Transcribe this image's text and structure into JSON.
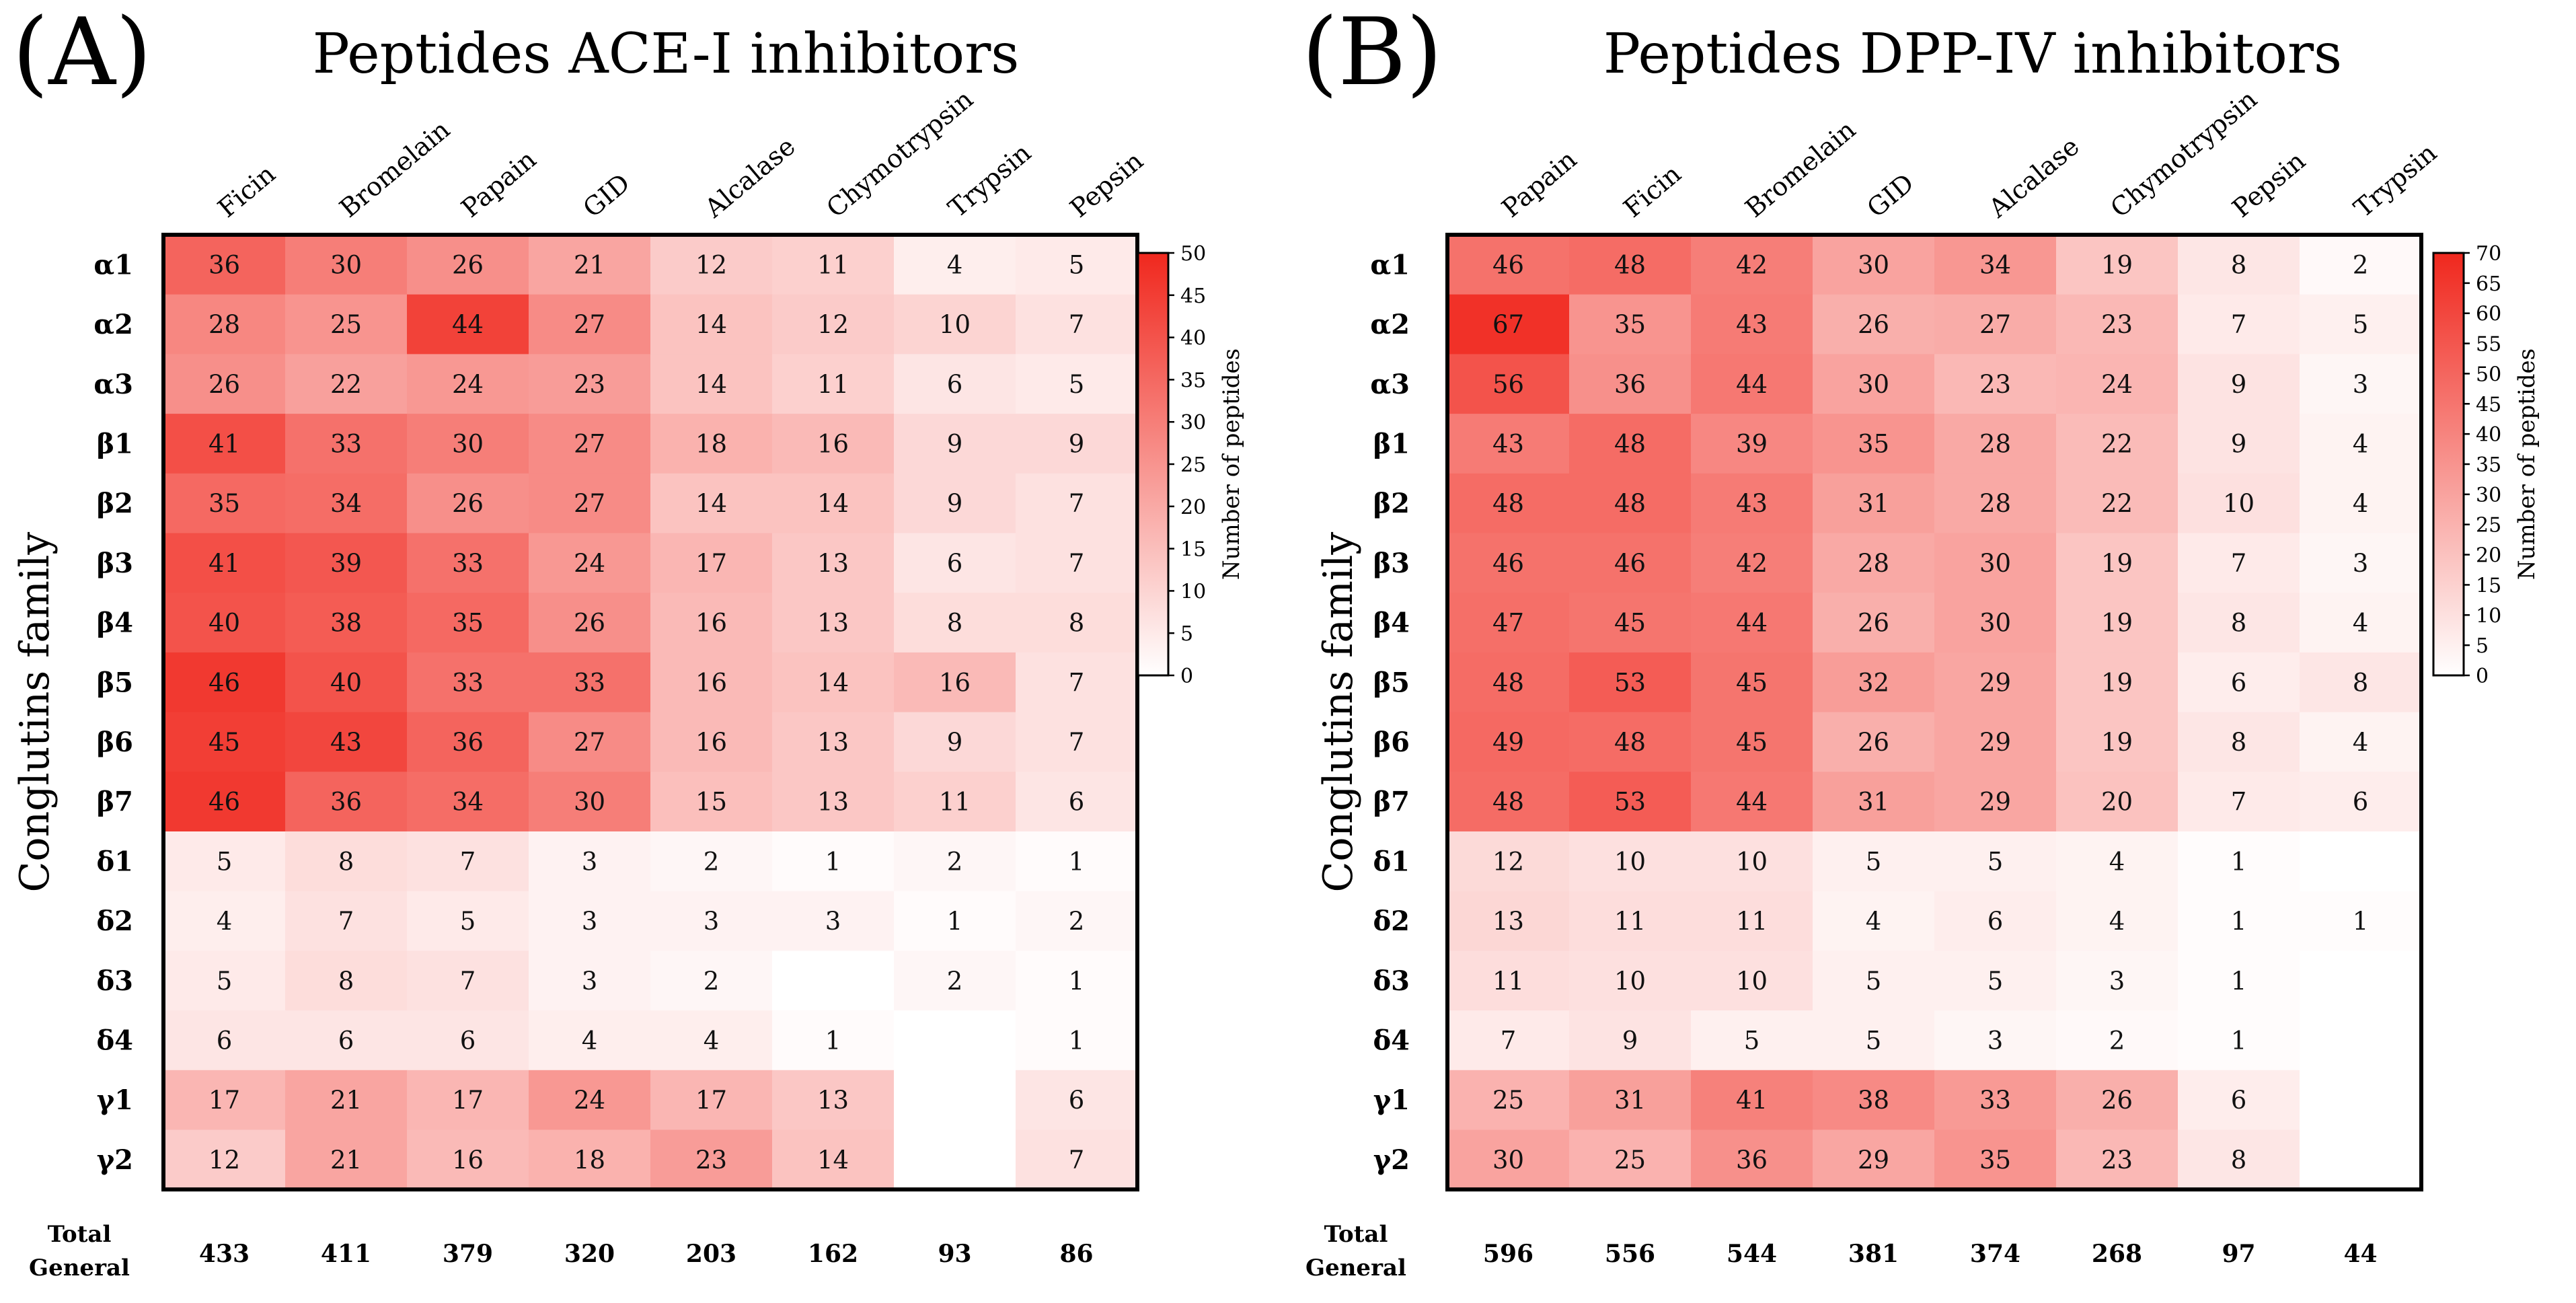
{
  "figure": {
    "y_axis_label": "Conglutins family",
    "total_label_line1": "Total",
    "total_label_line2": "General",
    "colorbar_label": "Number of peptides",
    "color_low": "#ffffff",
    "color_high": "#f0281e",
    "border_color": "#000000"
  },
  "chart_data": [
    {
      "type": "heatmap",
      "panel_label": "(A)",
      "title": "Peptides ACE-I inhibitors",
      "columns": [
        "Ficin",
        "Bromelain",
        "Papain",
        "GID",
        "Alcalase",
        "Chymotrypsin",
        "Trypsin",
        "Pepsin"
      ],
      "rows": [
        "α1",
        "α2",
        "α3",
        "β1",
        "β2",
        "β3",
        "β4",
        "β5",
        "β6",
        "β7",
        "δ1",
        "δ2",
        "δ3",
        "δ4",
        "γ1",
        "γ2"
      ],
      "values": [
        [
          36,
          30,
          26,
          21,
          12,
          11,
          4,
          5
        ],
        [
          28,
          25,
          44,
          27,
          14,
          12,
          10,
          7
        ],
        [
          26,
          22,
          24,
          23,
          14,
          11,
          6,
          5
        ],
        [
          41,
          33,
          30,
          27,
          18,
          16,
          9,
          9
        ],
        [
          35,
          34,
          26,
          27,
          14,
          14,
          9,
          7
        ],
        [
          41,
          39,
          33,
          24,
          17,
          13,
          6,
          7
        ],
        [
          40,
          38,
          35,
          26,
          16,
          13,
          8,
          8
        ],
        [
          46,
          40,
          33,
          33,
          16,
          14,
          16,
          7
        ],
        [
          45,
          43,
          36,
          27,
          16,
          13,
          9,
          7
        ],
        [
          46,
          36,
          34,
          30,
          15,
          13,
          11,
          6
        ],
        [
          5,
          8,
          7,
          3,
          2,
          1,
          2,
          1
        ],
        [
          4,
          7,
          5,
          3,
          3,
          3,
          1,
          2
        ],
        [
          5,
          8,
          7,
          3,
          2,
          null,
          2,
          1
        ],
        [
          6,
          6,
          6,
          4,
          4,
          1,
          null,
          1
        ],
        [
          17,
          21,
          17,
          24,
          17,
          13,
          null,
          6
        ],
        [
          12,
          21,
          16,
          18,
          23,
          14,
          null,
          7
        ]
      ],
      "totals": [
        433,
        411,
        379,
        320,
        203,
        162,
        93,
        86
      ],
      "colorbar_range": [
        0,
        50
      ],
      "colorbar_ticks": [
        0,
        5,
        10,
        15,
        20,
        25,
        30,
        35,
        40,
        45,
        50
      ]
    },
    {
      "type": "heatmap",
      "panel_label": "(B)",
      "title": "Peptides DPP-IV inhibitors",
      "columns": [
        "Papain",
        "Ficin",
        "Bromelain",
        "GID",
        "Alcalase",
        "Chymotrypsin",
        "Pepsin",
        "Trypsin"
      ],
      "rows": [
        "α1",
        "α2",
        "α3",
        "β1",
        "β2",
        "β3",
        "β4",
        "β5",
        "β6",
        "β7",
        "δ1",
        "δ2",
        "δ3",
        "δ4",
        "γ1",
        "γ2"
      ],
      "values": [
        [
          46,
          48,
          42,
          30,
          34,
          19,
          8,
          2
        ],
        [
          67,
          35,
          43,
          26,
          27,
          23,
          7,
          5
        ],
        [
          56,
          36,
          44,
          30,
          23,
          24,
          9,
          3
        ],
        [
          43,
          48,
          39,
          35,
          28,
          22,
          9,
          4
        ],
        [
          48,
          48,
          43,
          31,
          28,
          22,
          10,
          4
        ],
        [
          46,
          46,
          42,
          28,
          30,
          19,
          7,
          3
        ],
        [
          47,
          45,
          44,
          26,
          30,
          19,
          8,
          4
        ],
        [
          48,
          53,
          45,
          32,
          29,
          19,
          6,
          8
        ],
        [
          49,
          48,
          45,
          26,
          29,
          19,
          8,
          4
        ],
        [
          48,
          53,
          44,
          31,
          29,
          20,
          7,
          6
        ],
        [
          12,
          10,
          10,
          5,
          5,
          4,
          1,
          null
        ],
        [
          13,
          11,
          11,
          4,
          6,
          4,
          1,
          1
        ],
        [
          11,
          10,
          10,
          5,
          5,
          3,
          1,
          null
        ],
        [
          7,
          9,
          5,
          5,
          3,
          2,
          1,
          null
        ],
        [
          25,
          31,
          41,
          38,
          33,
          26,
          6,
          null
        ],
        [
          30,
          25,
          36,
          29,
          35,
          23,
          8,
          null
        ]
      ],
      "totals": [
        596,
        556,
        544,
        381,
        374,
        268,
        97,
        44
      ],
      "colorbar_range": [
        0,
        70
      ],
      "colorbar_ticks": [
        0,
        5,
        10,
        15,
        20,
        25,
        30,
        35,
        40,
        45,
        50,
        55,
        60,
        65,
        70
      ]
    }
  ]
}
